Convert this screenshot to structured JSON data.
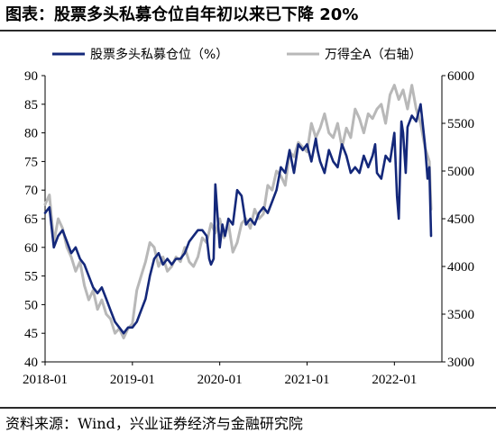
{
  "title": "图表：股票多头私募仓位自年初以来已下降 20%",
  "source": "资料来源：Wind，兴业证券经济与金融研究院",
  "colors": {
    "left_series": "#14287a",
    "right_series": "#b8b8b8"
  },
  "chart_data": {
    "type": "line",
    "title": "图表：股票多头私募仓位自年初以来已下降 20%",
    "xlabel": "",
    "ylabel": "",
    "y2label": "",
    "x_ticks": [
      "2018-01",
      "2019-01",
      "2020-01",
      "2021-01",
      "2022-01"
    ],
    "x_range": [
      2018.0,
      2022.42
    ],
    "ylim": [
      40,
      90
    ],
    "y_ticks": [
      40,
      45,
      50,
      55,
      60,
      65,
      70,
      75,
      80,
      85,
      90
    ],
    "y2lim": [
      3000,
      6000
    ],
    "y2_ticks": [
      3000,
      3500,
      4000,
      4500,
      5000,
      5500,
      6000
    ],
    "grid": false,
    "legend_position": "top",
    "series": [
      {
        "name": "股票多头私募仓位（%）",
        "axis": "left",
        "x": [
          2018.0,
          2018.05,
          2018.1,
          2018.15,
          2018.2,
          2018.25,
          2018.3,
          2018.35,
          2018.4,
          2018.45,
          2018.5,
          2018.55,
          2018.6,
          2018.65,
          2018.7,
          2018.75,
          2018.8,
          2018.85,
          2018.9,
          2018.95,
          2019.0,
          2019.05,
          2019.1,
          2019.15,
          2019.2,
          2019.25,
          2019.3,
          2019.35,
          2019.4,
          2019.45,
          2019.5,
          2019.55,
          2019.6,
          2019.65,
          2019.7,
          2019.75,
          2019.8,
          2019.85,
          2019.88,
          2019.9,
          2019.93,
          2019.95,
          2020.0,
          2020.03,
          2020.06,
          2020.1,
          2020.15,
          2020.2,
          2020.25,
          2020.3,
          2020.35,
          2020.4,
          2020.45,
          2020.5,
          2020.55,
          2020.6,
          2020.65,
          2020.7,
          2020.75,
          2020.8,
          2020.85,
          2020.9,
          2020.95,
          2021.0,
          2021.05,
          2021.1,
          2021.12,
          2021.15,
          2021.2,
          2021.25,
          2021.3,
          2021.35,
          2021.4,
          2021.45,
          2021.5,
          2021.55,
          2021.6,
          2021.65,
          2021.7,
          2021.75,
          2021.78,
          2021.8,
          2021.85,
          2021.9,
          2021.95,
          2022.0,
          2022.03,
          2022.05,
          2022.08,
          2022.1,
          2022.13,
          2022.15,
          2022.2,
          2022.25,
          2022.3,
          2022.35,
          2022.38,
          2022.4,
          2022.42
        ],
        "values": [
          66,
          67,
          60,
          62,
          63,
          61,
          59,
          60,
          58,
          57,
          55,
          53,
          52,
          53,
          51,
          49,
          47,
          46,
          45,
          46,
          46,
          47,
          49,
          51,
          55,
          58,
          59,
          57,
          58,
          57,
          58,
          58,
          59,
          61,
          62,
          63,
          63,
          62,
          58,
          57,
          58,
          71,
          60,
          64,
          62,
          65,
          64,
          70,
          69,
          64,
          65,
          64,
          66,
          67,
          66,
          68,
          70,
          74,
          73,
          77,
          73,
          78,
          77,
          78,
          75,
          79,
          77,
          75,
          73,
          77,
          75,
          74,
          78,
          76,
          73,
          74,
          73,
          76,
          74,
          76,
          78,
          73,
          72,
          76,
          75,
          80,
          69,
          65,
          82,
          80,
          73,
          81,
          83,
          82,
          85,
          78,
          72,
          74,
          62
        ]
      },
      {
        "name": "万得全A（右轴）",
        "axis": "right",
        "x": [
          2018.0,
          2018.05,
          2018.1,
          2018.15,
          2018.2,
          2018.25,
          2018.3,
          2018.35,
          2018.4,
          2018.45,
          2018.5,
          2018.55,
          2018.6,
          2018.65,
          2018.7,
          2018.75,
          2018.8,
          2018.85,
          2018.9,
          2018.95,
          2019.0,
          2019.05,
          2019.1,
          2019.15,
          2019.2,
          2019.25,
          2019.3,
          2019.35,
          2019.4,
          2019.45,
          2019.5,
          2019.55,
          2019.6,
          2019.65,
          2019.7,
          2019.75,
          2019.8,
          2019.85,
          2019.9,
          2019.95,
          2020.0,
          2020.05,
          2020.1,
          2020.15,
          2020.2,
          2020.25,
          2020.3,
          2020.35,
          2020.4,
          2020.45,
          2020.5,
          2020.55,
          2020.6,
          2020.65,
          2020.7,
          2020.75,
          2020.8,
          2020.85,
          2020.9,
          2020.95,
          2021.0,
          2021.05,
          2021.1,
          2021.15,
          2021.2,
          2021.25,
          2021.3,
          2021.35,
          2021.4,
          2021.45,
          2021.5,
          2021.55,
          2021.6,
          2021.65,
          2021.7,
          2021.75,
          2021.8,
          2021.85,
          2021.9,
          2021.95,
          2022.0,
          2022.05,
          2022.1,
          2022.15,
          2022.2,
          2022.25,
          2022.3,
          2022.35,
          2022.4,
          2022.42
        ],
        "values": [
          4650,
          4750,
          4250,
          4500,
          4400,
          4200,
          4100,
          3950,
          4050,
          3800,
          3650,
          3750,
          3550,
          3650,
          3500,
          3450,
          3300,
          3350,
          3250,
          3350,
          3400,
          3750,
          3900,
          4050,
          4250,
          4200,
          4000,
          4100,
          3950,
          4000,
          4100,
          4050,
          4200,
          4050,
          4000,
          4100,
          4300,
          4250,
          4450,
          4350,
          4500,
          4300,
          4450,
          4150,
          4250,
          4450,
          4500,
          4400,
          4600,
          4500,
          4550,
          4850,
          4800,
          5000,
          4950,
          4850,
          5200,
          5150,
          5300,
          5250,
          5200,
          5500,
          5350,
          5450,
          5600,
          5400,
          5350,
          5500,
          5250,
          5450,
          5350,
          5650,
          5550,
          5400,
          5600,
          5550,
          5650,
          5700,
          5500,
          5800,
          5900,
          5750,
          5850,
          5650,
          5900,
          5650,
          5500,
          5250,
          5100,
          4600
        ]
      }
    ]
  }
}
